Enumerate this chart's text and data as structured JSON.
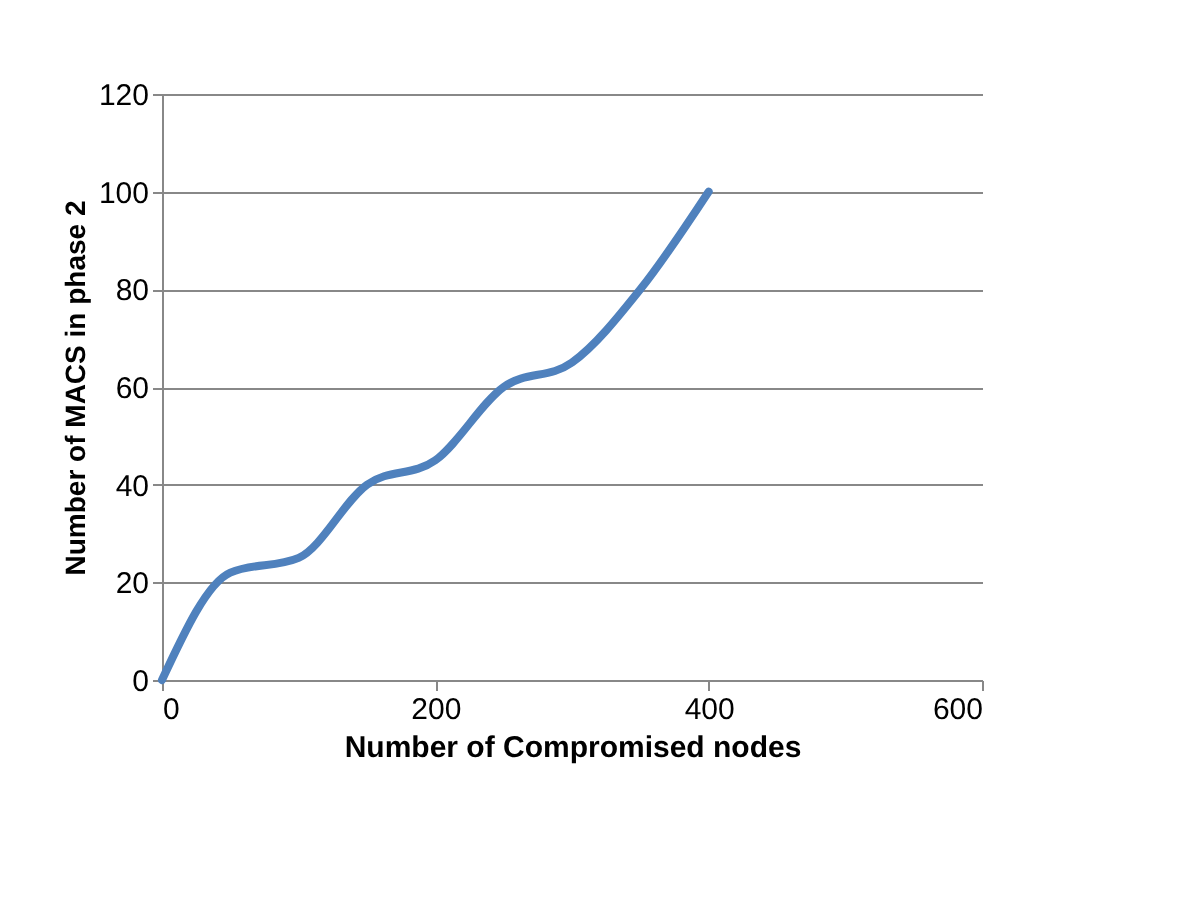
{
  "chart_data": {
    "type": "line",
    "xlabel": "Number of Compromised nodes",
    "ylabel": "Number of MACS in  phase 2",
    "x": [
      0,
      50,
      100,
      150,
      200,
      250,
      300,
      350,
      400
    ],
    "series": [
      {
        "color": "#4f81bd",
        "values": [
          0,
          22,
          25,
          40,
          45,
          60,
          65,
          80,
          100
        ]
      }
    ],
    "xlim": [
      0,
      600
    ],
    "xticks": [
      0,
      200,
      400,
      600
    ],
    "ylim": [
      0,
      120
    ],
    "yticks": [
      0,
      20,
      40,
      60,
      80,
      100,
      120
    ],
    "grid": "y",
    "legend": false,
    "marker": "none",
    "line_style": "solid"
  }
}
